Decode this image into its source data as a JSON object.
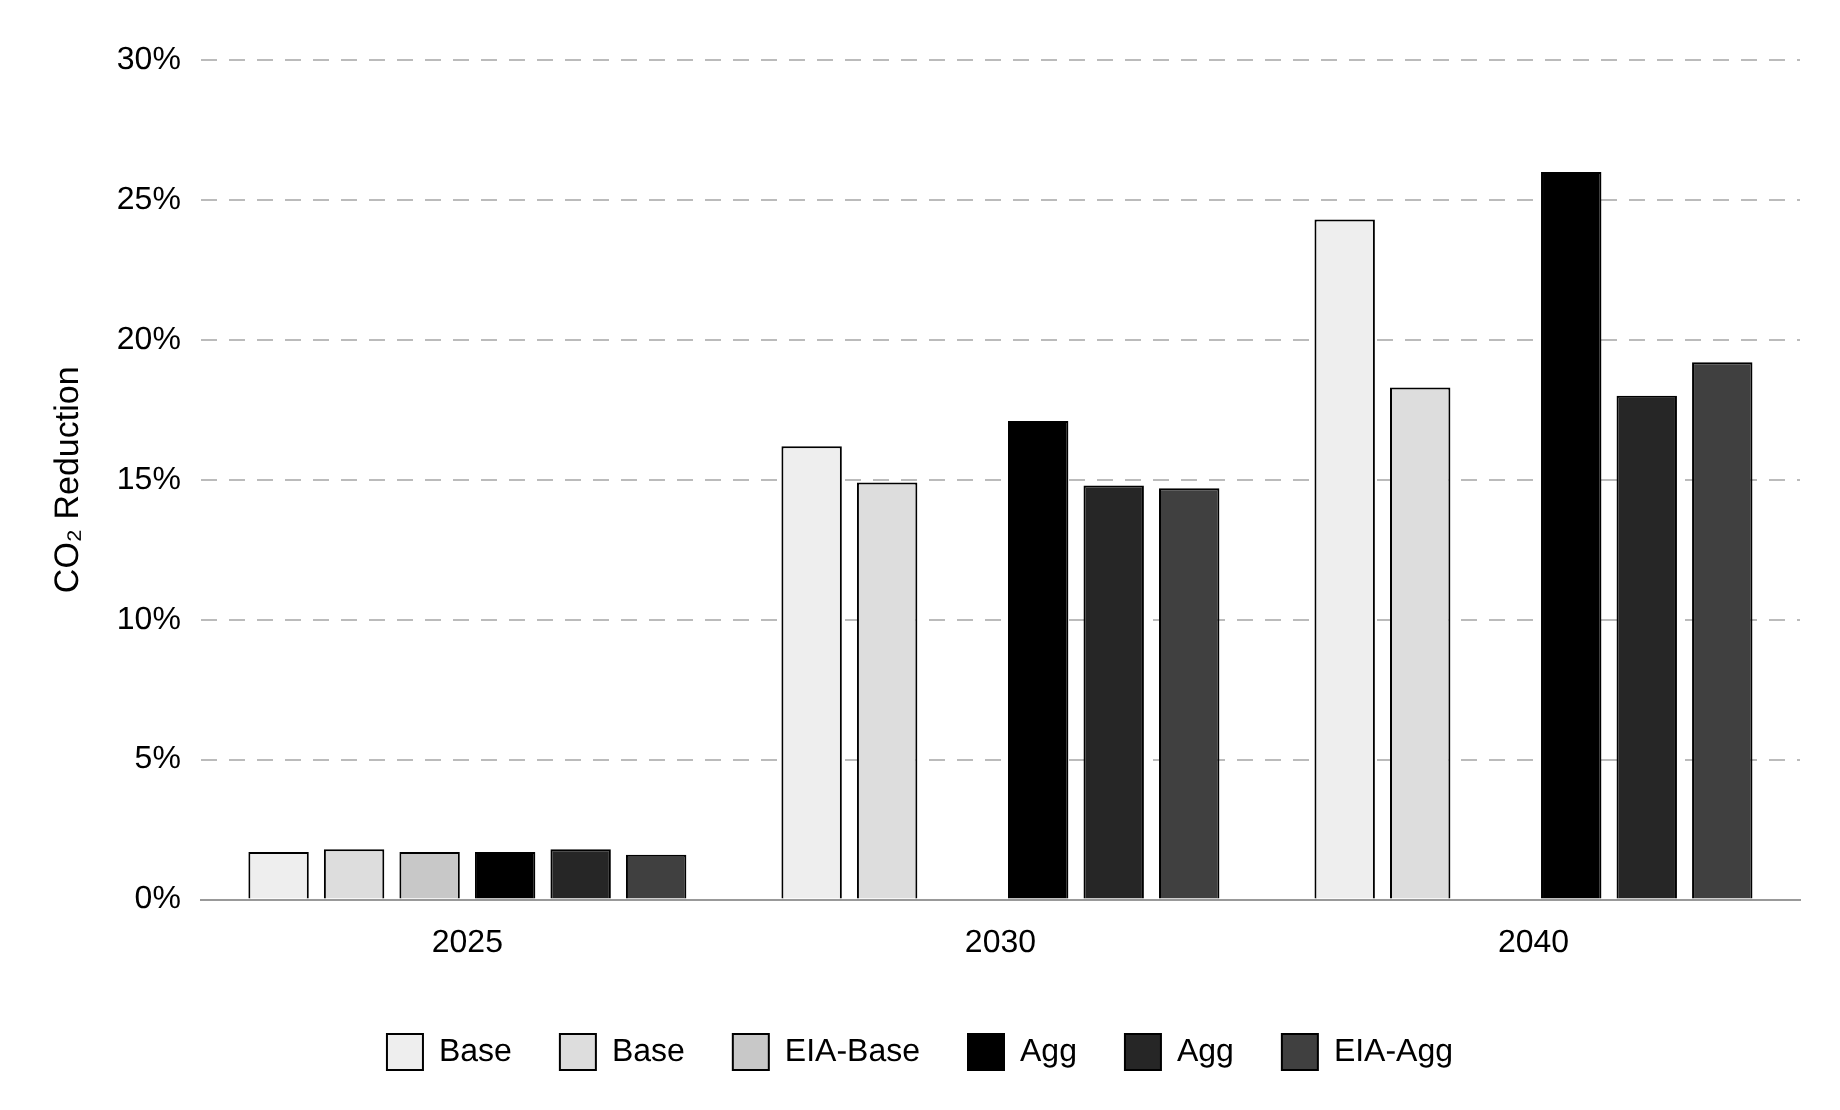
{
  "chart_data": {
    "type": "bar",
    "ylabel": "CO₂ Reduction",
    "categories": [
      "2025",
      "2030",
      "2040"
    ],
    "series": [
      {
        "name": "Base",
        "color": "#eeeeee",
        "values": [
          1.7,
          16.2,
          24.3
        ]
      },
      {
        "name": "Base",
        "color": "#dddddd",
        "values": [
          1.8,
          14.9,
          18.3
        ]
      },
      {
        "name": "EIA-Base",
        "color": "#c8c8c8",
        "values": [
          1.7,
          null,
          null
        ]
      },
      {
        "name": "Agg",
        "color": "#000000",
        "values": [
          1.7,
          17.1,
          26.0
        ]
      },
      {
        "name": "Agg",
        "color": "#262626",
        "values": [
          1.8,
          14.8,
          18.0
        ]
      },
      {
        "name": "EIA-Agg",
        "color": "#404040",
        "values": [
          1.6,
          14.7,
          19.2
        ]
      }
    ],
    "ylim": [
      0,
      30
    ],
    "yticks": [
      {
        "value": 0,
        "label": "0%"
      },
      {
        "value": 5,
        "label": "5%"
      },
      {
        "value": 10,
        "label": "10%"
      },
      {
        "value": 15,
        "label": "15%"
      },
      {
        "value": 20,
        "label": "20%"
      },
      {
        "value": 25,
        "label": "25%"
      },
      {
        "value": 30,
        "label": "30%"
      }
    ],
    "grid": "y",
    "legend": "bottom"
  }
}
